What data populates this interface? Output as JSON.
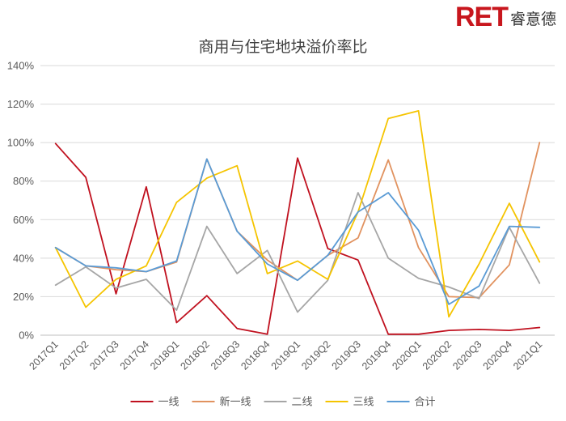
{
  "brand": {
    "mark": "RET",
    "name_cn": "睿意德"
  },
  "chart_data": {
    "type": "line",
    "title": "商用与住宅地块溢价率比",
    "xlabel": "",
    "ylabel": "",
    "categories": [
      "2017Q1",
      "2017Q2",
      "2017Q3",
      "2017Q4",
      "2018Q1",
      "2018Q2",
      "2018Q3",
      "2018Q4",
      "2019Q1",
      "2019Q2",
      "2019Q3",
      "2019Q4",
      "2020Q1",
      "2020Q2",
      "2020Q3",
      "2020Q4",
      "2021Q1"
    ],
    "ylim": [
      0,
      140
    ],
    "y_ticks": [
      0,
      20,
      40,
      60,
      80,
      100,
      120,
      140
    ],
    "y_tick_labels": [
      "0%",
      "20%",
      "40%",
      "60%",
      "80%",
      "100%",
      "120%",
      "140%"
    ],
    "grid": "horizontal",
    "legend_position": "bottom",
    "series": [
      {
        "name": "一线",
        "color": "#c0111f",
        "values": [
          99.5,
          82,
          21.5,
          77,
          6.5,
          20.5,
          3.5,
          0.5,
          92,
          45,
          39,
          0.5,
          0.5,
          2.5,
          3,
          2.5,
          4
        ]
      },
      {
        "name": "新一线",
        "color": "#e1925f",
        "values": [
          45.5,
          36,
          34,
          33,
          38,
          91.5,
          54,
          39,
          28.5,
          41.5,
          50.5,
          91,
          45.5,
          20,
          19.5,
          36.5,
          100
        ]
      },
      {
        "name": "二线",
        "color": "#a6a6a6",
        "values": [
          26,
          35.5,
          24.5,
          29,
          13,
          56.5,
          32,
          44,
          12,
          28.5,
          74,
          40,
          29.5,
          25,
          19,
          56,
          27
        ]
      },
      {
        "name": "三线",
        "color": "#f5c400",
        "values": [
          45.5,
          14.5,
          29,
          36,
          69,
          81.5,
          88,
          32,
          38.5,
          29,
          64,
          112.5,
          116.5,
          9.5,
          37,
          68.5,
          38
        ]
      },
      {
        "name": "合计",
        "color": "#5a9bd5",
        "values": [
          45.5,
          36,
          35,
          33,
          38.5,
          91.5,
          54,
          37,
          28.5,
          41.5,
          64,
          74,
          54.5,
          16,
          25.5,
          56.5,
          56
        ]
      }
    ]
  }
}
